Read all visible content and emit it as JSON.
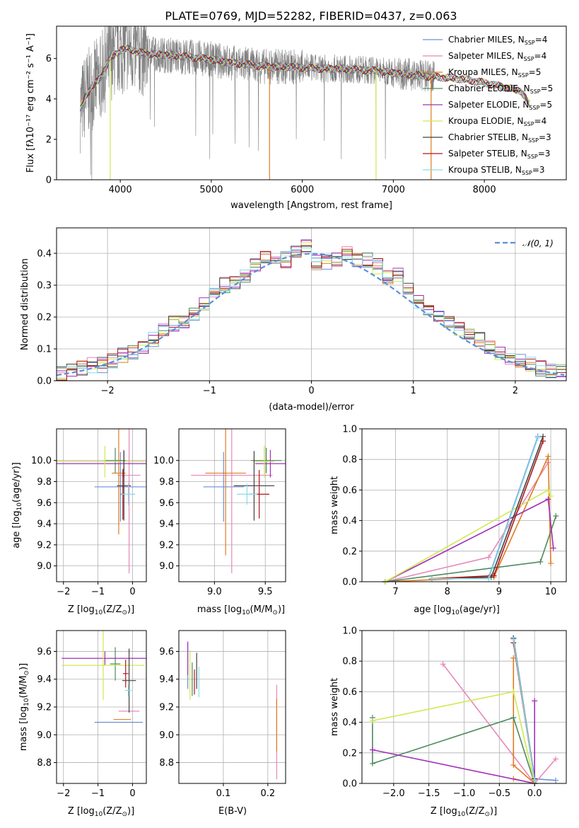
{
  "chart_data": [
    {
      "type": "line",
      "title": "PLATE=0769, MJD=52282, FIBERID=0437, z=0.063",
      "xlabel": "wavelength [Angstrom, rest frame]",
      "ylabel": "Flux [fλ10⁻¹⁷ erg cm⁻² s⁻¹ A⁻¹]",
      "xlim": [
        3300,
        8900
      ],
      "ylim": [
        0,
        7.6
      ],
      "xticks": [
        4000,
        5000,
        6000,
        7000,
        8000
      ],
      "yticks": [
        0,
        2,
        4,
        6
      ],
      "grid": false,
      "legend": "top-right",
      "observed_color": "#808080",
      "series": [
        {
          "name": "Chabrier MILES, N_SSP=4",
          "legend": "Chabrier MILES, N",
          "sub": "SSP",
          "eq": "=4",
          "color": "#6a8fd8"
        },
        {
          "name": "Salpeter MILES, N_SSP=4",
          "legend": "Salpeter MILES, N",
          "sub": "SSP",
          "eq": "=4",
          "color": "#e888b8"
        },
        {
          "name": "Kroupa MILES, N_SSP=5",
          "legend": "Kroupa MILES, N",
          "sub": "SSP",
          "eq": "=5",
          "color": "#e07a20"
        },
        {
          "name": "Chabrier ELODIE, N_SSP=5",
          "legend": "Chabrier ELODIE, N",
          "sub": "SSP",
          "eq": "=5",
          "color": "#4d8a5e"
        },
        {
          "name": "Salpeter ELODIE, N_SSP=5",
          "legend": "Salpeter ELODIE, N",
          "sub": "SSP",
          "eq": "=5",
          "color": "#a030b8"
        },
        {
          "name": "Kroupa ELODIE, N_SSP=4",
          "legend": "Kroupa ELODIE, N",
          "sub": "SSP",
          "eq": "=4",
          "color": "#d0e850"
        },
        {
          "name": "Chabrier STELIB, N_SSP=3",
          "legend": "Chabrier STELIB, N",
          "sub": "SSP",
          "eq": "=3",
          "color": "#404040"
        },
        {
          "name": "Salpeter STELIB, N_SSP=3",
          "legend": "Salpeter STELIB, N",
          "sub": "SSP",
          "eq": "=3",
          "color": "#b01818"
        },
        {
          "name": "Kroupa STELIB, N_SSP=3",
          "legend": "Kroupa STELIB, N",
          "sub": "SSP",
          "eq": "=3",
          "color": "#88dcea"
        }
      ],
      "continuum": {
        "x": [
          3560,
          3620,
          3700,
          3800,
          3900,
          4000,
          4100,
          4200,
          4400,
          4600,
          4800,
          5000,
          5200,
          5400,
          5600,
          5800,
          6000,
          6200,
          6400,
          6600,
          6800,
          7000,
          7200,
          7400,
          7600,
          7800,
          8000,
          8200,
          8400,
          8500
        ],
        "y": [
          3.5,
          4.2,
          4.6,
          5.2,
          6.1,
          6.4,
          6.5,
          6.3,
          6.2,
          6.15,
          6.05,
          5.95,
          5.8,
          5.7,
          5.6,
          5.6,
          5.55,
          5.5,
          5.5,
          5.45,
          5.4,
          5.3,
          5.2,
          5.1,
          5.05,
          4.95,
          4.8,
          4.6,
          4.4,
          3.7
        ]
      }
    },
    {
      "type": "histogram",
      "xlabel": "(data-model)/error",
      "ylabel": "Normed distribution",
      "xlim": [
        -2.5,
        2.5
      ],
      "ylim": [
        0,
        0.48
      ],
      "xticks": [
        -2,
        -1,
        0,
        1,
        2
      ],
      "yticks": [
        0.0,
        0.1,
        0.2,
        0.3,
        0.4
      ],
      "grid": true,
      "legend": "top-right",
      "reference_curve": {
        "name": "𝒩(0, 1)",
        "color": "#5b8fd8",
        "style": "dashed"
      },
      "bin_width": 0.1,
      "bin_centers": [
        -2.45,
        -2.35,
        -2.25,
        -2.15,
        -2.05,
        -1.95,
        -1.85,
        -1.75,
        -1.65,
        -1.55,
        -1.45,
        -1.35,
        -1.25,
        -1.15,
        -1.05,
        -0.95,
        -0.85,
        -0.75,
        -0.65,
        -0.55,
        -0.45,
        -0.35,
        -0.25,
        -0.15,
        -0.05,
        0.05,
        0.15,
        0.25,
        0.35,
        0.45,
        0.55,
        0.65,
        0.75,
        0.85,
        0.95,
        1.05,
        1.15,
        1.25,
        1.35,
        1.45,
        1.55,
        1.65,
        1.75,
        1.85,
        1.95,
        2.05,
        2.15,
        2.25,
        2.35,
        2.45
      ],
      "base_density": [
        0.02,
        0.03,
        0.04,
        0.05,
        0.05,
        0.06,
        0.08,
        0.09,
        0.11,
        0.13,
        0.16,
        0.18,
        0.19,
        0.21,
        0.24,
        0.27,
        0.3,
        0.31,
        0.33,
        0.36,
        0.39,
        0.39,
        0.38,
        0.4,
        0.42,
        0.37,
        0.37,
        0.38,
        0.4,
        0.38,
        0.38,
        0.36,
        0.32,
        0.33,
        0.29,
        0.25,
        0.23,
        0.2,
        0.18,
        0.16,
        0.14,
        0.13,
        0.11,
        0.09,
        0.07,
        0.06,
        0.05,
        0.04,
        0.03,
        0.03
      ]
    },
    {
      "type": "errorbar",
      "xlabel": "Z [log₁₀(Z/Z⊙)]",
      "ylabel": "age  [log₁₀(age/yr)]",
      "xlim": [
        -2.2,
        0.4
      ],
      "ylim": [
        8.85,
        10.3
      ],
      "xticks": [
        -2,
        -1,
        0
      ],
      "yticks": [
        9.0,
        9.2,
        9.4,
        9.6,
        9.8,
        10.0
      ],
      "grid": true,
      "points": [
        {
          "x": -0.35,
          "y": 9.75,
          "xerr": 0.75,
          "yerr": 0.33
        },
        {
          "x": -0.1,
          "y": 9.86,
          "xerr": 0.33,
          "yerr": 0.93
        },
        {
          "x": -0.4,
          "y": 9.88,
          "xerr": 0.2,
          "yerr": 0.58
        },
        {
          "x": -0.5,
          "y": 10.0,
          "xerr": 0.3,
          "yerr": 0.12
        },
        {
          "x": -0.25,
          "y": 9.97,
          "xerr": 1.95,
          "yerr": 0.13
        },
        {
          "x": -0.8,
          "y": 9.99,
          "xerr": 1.4,
          "yerr": 0.15
        },
        {
          "x": -0.25,
          "y": 9.76,
          "xerr": 0.2,
          "yerr": 0.33
        },
        {
          "x": -0.28,
          "y": 9.68,
          "xerr": 0.06,
          "yerr": 0.24
        },
        {
          "x": -0.12,
          "y": 9.68,
          "xerr": 0.2,
          "yerr": 0.1
        }
      ]
    },
    {
      "type": "errorbar",
      "xlabel": "mass [log₁₀(M/M⊙)]",
      "ylabel": "",
      "xlim": [
        8.65,
        9.7
      ],
      "ylim": [
        8.85,
        10.3
      ],
      "xticks": [
        9.0,
        9.5
      ],
      "yticks": [
        9.0,
        9.2,
        9.4,
        9.6,
        9.8,
        10.0
      ],
      "grid": true,
      "points": [
        {
          "x": 9.09,
          "y": 9.75,
          "xerr": 0.2,
          "yerr": 0.33
        },
        {
          "x": 9.17,
          "y": 9.86,
          "xerr": 0.4,
          "yerr": 0.93
        },
        {
          "x": 9.11,
          "y": 9.88,
          "xerr": 0.2,
          "yerr": 0.78
        },
        {
          "x": 9.51,
          "y": 10.0,
          "xerr": 0.15,
          "yerr": 0.12
        },
        {
          "x": 9.55,
          "y": 9.97,
          "xerr": 0.15,
          "yerr": 0.13
        },
        {
          "x": 9.49,
          "y": 9.99,
          "xerr": 0.1,
          "yerr": 0.15
        },
        {
          "x": 9.39,
          "y": 9.76,
          "xerr": 0.2,
          "yerr": 0.33
        },
        {
          "x": 9.44,
          "y": 9.68,
          "xerr": 0.1,
          "yerr": 0.23
        },
        {
          "x": 9.32,
          "y": 9.68,
          "xerr": 0.1,
          "yerr": 0.1
        }
      ]
    },
    {
      "type": "line",
      "xlabel": "age  [log₁₀(age/yr)]",
      "ylabel": "mass weight",
      "xlim": [
        6.35,
        10.3
      ],
      "ylim": [
        0,
        1.0
      ],
      "xticks": [
        7,
        8,
        9,
        10
      ],
      "yticks": [
        0.0,
        0.2,
        0.4,
        0.6,
        0.8,
        1.0
      ],
      "grid": true,
      "series": [
        {
          "x": [
            7.7,
            8.8,
            9.75
          ],
          "y": [
            0.02,
            0.03,
            0.95
          ]
        },
        {
          "x": [
            6.8,
            8.8,
            9.95
          ],
          "y": [
            0.0,
            0.16,
            0.78
          ]
        },
        {
          "x": [
            6.8,
            8.9,
            9.95,
            10.0
          ],
          "y": [
            0.0,
            0.03,
            0.82,
            0.12
          ]
        },
        {
          "x": [
            6.8,
            9.8,
            10.1
          ],
          "y": [
            0.0,
            0.13,
            0.43
          ]
        },
        {
          "x": [
            6.8,
            9.95,
            10.05
          ],
          "y": [
            0.0,
            0.54,
            0.22
          ]
        },
        {
          "x": [
            6.8,
            9.95,
            10.0
          ],
          "y": [
            0.0,
            0.6,
            0.56
          ]
        },
        {
          "x": [
            7.7,
            8.85,
            9.85
          ],
          "y": [
            0.02,
            0.03,
            0.95
          ]
        },
        {
          "x": [
            7.7,
            8.9,
            9.85
          ],
          "y": [
            0.02,
            0.04,
            0.92
          ]
        },
        {
          "x": [
            7.7,
            8.8,
            9.75
          ],
          "y": [
            0.02,
            0.02,
            0.94
          ]
        }
      ]
    },
    {
      "type": "errorbar",
      "xlabel": "Z [log₁₀(Z/Z⊙)]",
      "ylabel": "mass [log₁₀(M/M⊙)]",
      "xlim": [
        -2.2,
        0.4
      ],
      "ylim": [
        8.65,
        9.75
      ],
      "xticks": [
        -2,
        -1,
        0
      ],
      "yticks": [
        8.8,
        9.0,
        9.2,
        9.4,
        9.6
      ],
      "grid": true,
      "points": [
        {
          "x": -0.4,
          "y": 9.09,
          "xerr": 0.7,
          "yerr": 0.0
        },
        {
          "x": -0.1,
          "y": 9.17,
          "xerr": 0.3,
          "yerr": 0.0
        },
        {
          "x": -0.3,
          "y": 9.11,
          "xerr": 0.25,
          "yerr": 0.0
        },
        {
          "x": -0.5,
          "y": 9.51,
          "xerr": 0.15,
          "yerr": 0.12
        },
        {
          "x": -0.8,
          "y": 9.55,
          "xerr": 1.25,
          "yerr": 0.05
        },
        {
          "x": -0.85,
          "y": 9.5,
          "xerr": 1.2,
          "yerr": 0.25
        },
        {
          "x": -0.1,
          "y": 9.39,
          "xerr": 0.2,
          "yerr": 0.23
        },
        {
          "x": -0.2,
          "y": 9.44,
          "xerr": 0.08,
          "yerr": 0.1
        },
        {
          "x": -0.12,
          "y": 9.32,
          "xerr": 0.1,
          "yerr": 0.04
        }
      ]
    },
    {
      "type": "errorbar",
      "xlabel": "E(B-V)",
      "ylabel": "",
      "xlim": [
        0.0,
        0.24
      ],
      "ylim": [
        8.65,
        9.75
      ],
      "xticks": [
        0.1,
        0.2
      ],
      "yticks": [
        8.8,
        9.0,
        9.2,
        9.4,
        9.6
      ],
      "grid": true,
      "points": [
        {
          "x": 0.02,
          "y": 9.5,
          "xerr": 0,
          "yerr": 0.17
        },
        {
          "x": 0.22,
          "y": 9.02,
          "xerr": 0,
          "yerr": 0.34
        },
        {
          "x": 0.22,
          "y": 9.07,
          "xerr": 0,
          "yerr": 0.19
        },
        {
          "x": 0.03,
          "y": 9.4,
          "xerr": 0,
          "yerr": 0.12
        },
        {
          "x": 0.02,
          "y": 9.55,
          "xerr": 0,
          "yerr": 0.12
        },
        {
          "x": 0.025,
          "y": 9.43,
          "xerr": 0,
          "yerr": 0.18
        },
        {
          "x": 0.04,
          "y": 9.46,
          "xerr": 0,
          "yerr": 0.13
        },
        {
          "x": 0.035,
          "y": 9.38,
          "xerr": 0,
          "yerr": 0.09
        },
        {
          "x": 0.045,
          "y": 9.38,
          "xerr": 0,
          "yerr": 0.11
        }
      ]
    },
    {
      "type": "line",
      "xlabel": "Z [log₁₀(Z/Z⊙)]",
      "ylabel": "mass weight",
      "xlim": [
        -2.45,
        0.45
      ],
      "ylim": [
        0,
        1.0
      ],
      "xticks": [
        -2.0,
        -1.5,
        -1.0,
        -0.5,
        0.0
      ],
      "yticks": [
        0.0,
        0.2,
        0.4,
        0.6,
        0.8,
        1.0
      ],
      "grid": true,
      "series": [
        {
          "x": [
            -0.3,
            0.0,
            0.3
          ],
          "y": [
            0.95,
            0.03,
            0.02
          ]
        },
        {
          "x": [
            -1.3,
            0.0,
            0.3
          ],
          "y": [
            0.78,
            0.0,
            0.16
          ]
        },
        {
          "x": [
            -0.3,
            -0.3,
            0.0,
            -0.3
          ],
          "y": [
            0.82,
            0.12,
            0.0,
            0.03
          ]
        },
        {
          "x": [
            -2.3,
            -2.3,
            -0.3,
            0.0
          ],
          "y": [
            0.43,
            0.13,
            0.43,
            0.0
          ]
        },
        {
          "x": [
            -2.3,
            0.0,
            0.0
          ],
          "y": [
            0.22,
            0.0,
            0.54
          ]
        },
        {
          "x": [
            -2.3,
            -0.3,
            0.0
          ],
          "y": [
            0.41,
            0.6,
            0.0
          ]
        },
        {
          "x": [
            -0.3,
            0.0
          ],
          "y": [
            0.95,
            0.03
          ]
        },
        {
          "x": [
            -0.3,
            0.0
          ],
          "y": [
            0.92,
            0.02
          ]
        },
        {
          "x": [
            -0.3,
            0.0
          ],
          "y": [
            0.94,
            0.02
          ]
        }
      ]
    }
  ]
}
